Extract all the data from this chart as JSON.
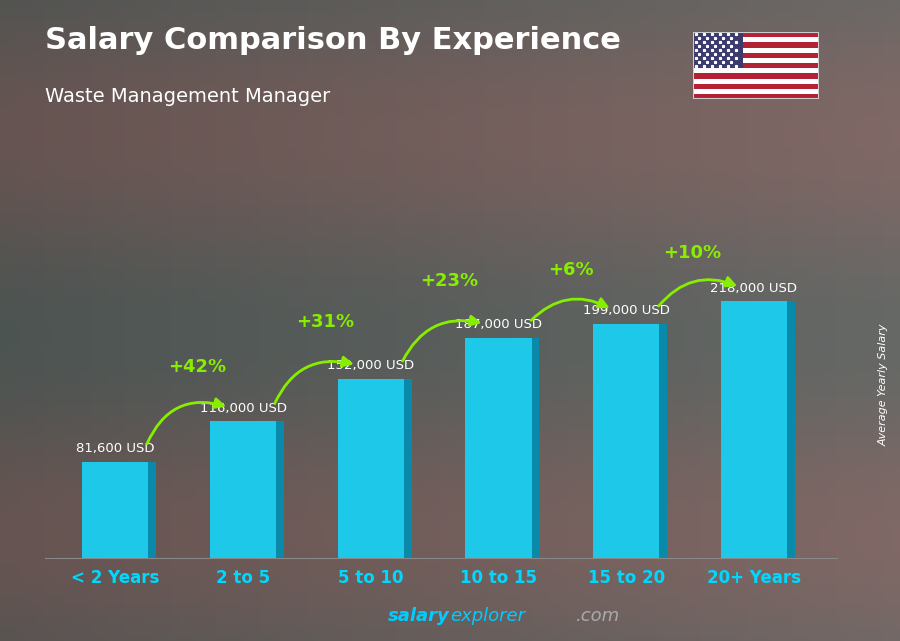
{
  "title": "Salary Comparison By Experience",
  "subtitle": "Waste Management Manager",
  "categories": [
    "< 2 Years",
    "2 to 5",
    "5 to 10",
    "10 to 15",
    "15 to 20",
    "20+ Years"
  ],
  "values": [
    81600,
    116000,
    152000,
    187000,
    199000,
    218000
  ],
  "labels": [
    "81,600 USD",
    "116,000 USD",
    "152,000 USD",
    "187,000 USD",
    "199,000 USD",
    "218,000 USD"
  ],
  "pct_changes": [
    "+42%",
    "+31%",
    "+23%",
    "+6%",
    "+10%"
  ],
  "bar_face_color": "#1ec8e8",
  "bar_side_color": "#0a8aaa",
  "bar_top_color": "#55ddf5",
  "bg_color": "#666666",
  "bg_top_color": "#5a5a5a",
  "ylabel": "Average Yearly Salary",
  "watermark_salary": "salary",
  "watermark_explorer": "explorer",
  "watermark_dot_com": ".com",
  "watermark_color_salary": "#00ccff",
  "watermark_color_explorer": "#00ccff",
  "watermark_color_com": "#cccccc",
  "title_color": "#ffffff",
  "pct_color": "#88ee00",
  "xticklabel_color": "#00d8ff",
  "label_color": "#ffffff",
  "flag_border_color": "#cccccc"
}
